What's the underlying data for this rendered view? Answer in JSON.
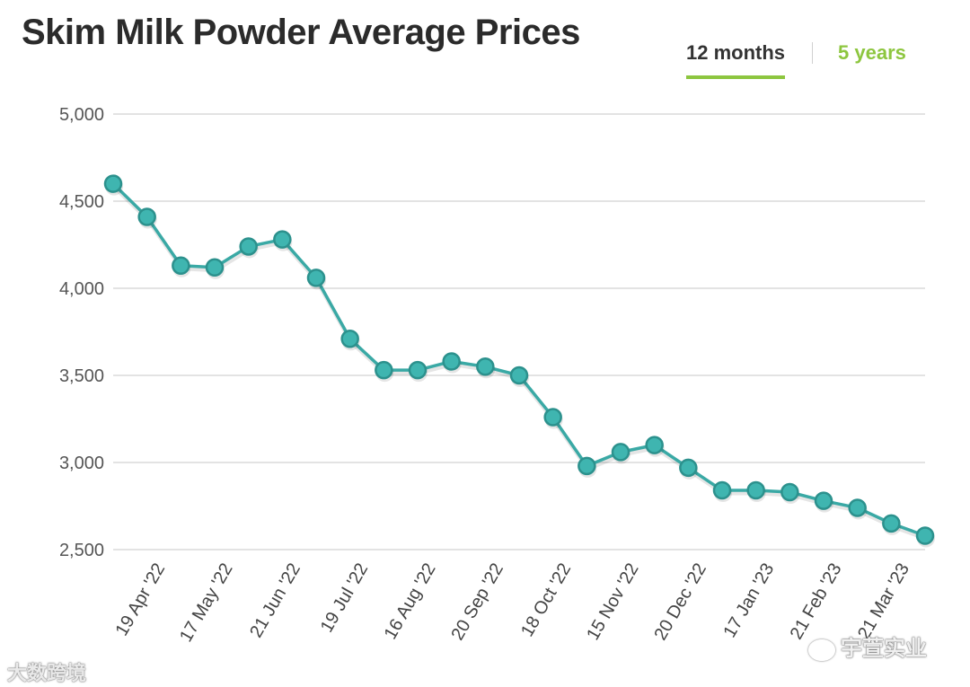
{
  "header": {
    "title": "Skim Milk Powder Average Prices",
    "tabs": [
      {
        "label": "12 months",
        "active": true
      },
      {
        "label": "5 years",
        "active": false
      }
    ]
  },
  "watermarks": {
    "left": "大数跨境",
    "right": "宇萱实业"
  },
  "colors": {
    "line": "#3aa9a5",
    "marker_fill": "#3fb5b0",
    "marker_stroke": "#2c918d",
    "grid": "#e3e3e3",
    "accent": "#8dc63f"
  },
  "chart_data": {
    "type": "line",
    "title": "Skim Milk Powder Average Prices",
    "xlabel": "",
    "ylabel": "",
    "ylim": [
      2500,
      5000
    ],
    "yticks": [
      2500,
      3000,
      3500,
      4000,
      4500,
      5000
    ],
    "ytick_labels": [
      "2,500",
      "3,000",
      "3,500",
      "4,000",
      "4,500",
      "5,000"
    ],
    "xtick_labels": [
      "19 Apr '22",
      "17 May '22",
      "21 Jun '22",
      "19 Jul '22",
      "16 Aug '22",
      "20 Sep '22",
      "18 Oct '22",
      "15 Nov '22",
      "20 Dec '22",
      "17 Jan '23",
      "21 Feb '23",
      "21 Mar '23"
    ],
    "xtick_positions": [
      0,
      2,
      4,
      6,
      8,
      10,
      12,
      14,
      16,
      18,
      20,
      22
    ],
    "grid": true,
    "series": [
      {
        "name": "Skim Milk Powder",
        "values": [
          4600,
          4410,
          4130,
          4120,
          4240,
          4280,
          4060,
          3710,
          3530,
          3530,
          3580,
          3550,
          3500,
          3260,
          2980,
          3060,
          3100,
          2970,
          2840,
          2840,
          2830,
          2780,
          2740,
          2650,
          2580
        ]
      }
    ]
  }
}
